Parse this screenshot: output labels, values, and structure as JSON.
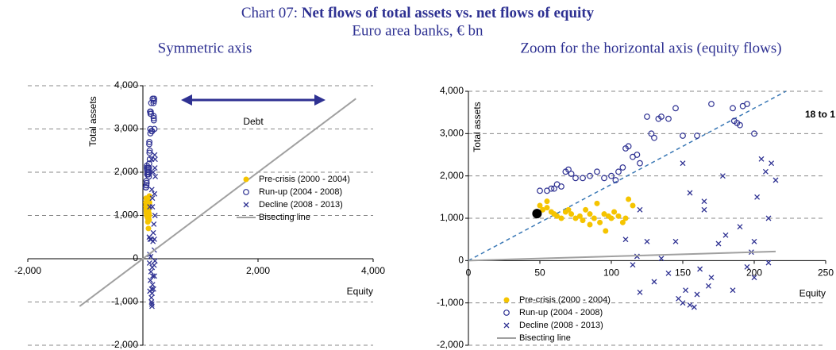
{
  "header": {
    "title_prefix": "Chart 07:",
    "title": "Net flows of total assets vs. net flows of equity",
    "subtitle": "Euro area banks,  € bn"
  },
  "chart_data": [
    {
      "type": "scatter",
      "title": "Symmetric axis",
      "xlabel": "Equity",
      "ylabel": "Total assets",
      "xlim": [
        -2000,
        4000
      ],
      "ylim": [
        -2000,
        4000
      ],
      "xticks": [
        {
          "value": -2000,
          "label": "-2,000"
        },
        {
          "value": 2000,
          "label": "2,000"
        },
        {
          "value": 4000,
          "label": "4,000"
        }
      ],
      "yticks": [
        {
          "value": -2000,
          "label": "-2,000"
        },
        {
          "value": -1000,
          "label": "-1,000"
        },
        0,
        {
          "value": 1000,
          "label": "1,000"
        },
        {
          "value": 2000,
          "label": "2,000"
        },
        {
          "value": 3000,
          "label": "3,000"
        },
        {
          "value": 4000,
          "label": "4,000"
        }
      ],
      "grid": true,
      "legend": "lower right",
      "annotation": "Debt",
      "series": [
        {
          "name": "Pre-crisis (2000 - 2004)",
          "color": "#f5c400",
          "marker": "dot",
          "x": [
            50,
            52,
            55,
            58,
            60,
            62,
            65,
            68,
            70,
            72,
            75,
            78,
            80,
            82,
            85,
            88,
            90,
            92,
            95,
            98,
            100,
            102,
            105,
            108,
            110,
            112,
            115,
            96,
            85,
            55
          ],
          "y": [
            1300,
            1200,
            1250,
            1150,
            1100,
            1050,
            1000,
            1150,
            1200,
            1100,
            1000,
            1050,
            950,
            1200,
            1100,
            1000,
            1350,
            900,
            1100,
            1050,
            1000,
            1150,
            1050,
            900,
            1000,
            1450,
            1300,
            700,
            850,
            1400
          ]
        },
        {
          "name": "Run-up (2004 - 2008)",
          "color": "#2e3192",
          "marker": "circle",
          "x": [
            50,
            55,
            60,
            62,
            65,
            68,
            70,
            72,
            80,
            85,
            90,
            95,
            100,
            105,
            108,
            110,
            112,
            115,
            120,
            125,
            128,
            130,
            133,
            135,
            140,
            145,
            150,
            160,
            170,
            185,
            190,
            195,
            200,
            188,
            192,
            186,
            118,
            103,
            75,
            58
          ],
          "y": [
            1650,
            1650,
            1700,
            1800,
            1750,
            2100,
            2150,
            2050,
            1950,
            2000,
            2100,
            1950,
            2000,
            2100,
            2200,
            2650,
            2700,
            2450,
            2300,
            3400,
            3000,
            2900,
            3350,
            3400,
            3350,
            3600,
            2950,
            2950,
            3700,
            3600,
            3200,
            3700,
            3000,
            3250,
            3650,
            3300,
            2500,
            1900,
            1950,
            1700
          ]
        },
        {
          "name": "Decline (2008 - 2013)",
          "color": "#2e3192",
          "marker": "x",
          "x": [
            110,
            115,
            118,
            120,
            125,
            130,
            135,
            140,
            145,
            147,
            150,
            152,
            155,
            155,
            158,
            160,
            162,
            165,
            168,
            170,
            175,
            180,
            185,
            190,
            195,
            198,
            200,
            202,
            205,
            210,
            212,
            215,
            120,
            150,
            165,
            178,
            208,
            210,
            200
          ],
          "y": [
            500,
            -100,
            100,
            -750,
            450,
            -500,
            50,
            -300,
            450,
            -900,
            -1000,
            -700,
            -1050,
            1600,
            -1100,
            -800,
            -200,
            1200,
            -600,
            -400,
            400,
            600,
            -700,
            800,
            -150,
            200,
            450,
            1500,
            2400,
            1000,
            2300,
            1900,
            1200,
            2300,
            1400,
            2000,
            2100,
            -50,
            -400
          ]
        },
        {
          "name": "Bisecting line",
          "color": "#a0a0a0",
          "marker": "line",
          "x": [
            -1100,
            3700
          ],
          "y": [
            -1100,
            3700
          ]
        }
      ]
    },
    {
      "type": "scatter",
      "title": "Zoom for the horizontal axis (equity flows)",
      "xlabel": "Equity",
      "ylabel": "Total assets",
      "xlim": [
        0,
        250
      ],
      "ylim": [
        -2000,
        4000
      ],
      "xticks": [
        0,
        50,
        100,
        150,
        200,
        250
      ],
      "yticks": [
        {
          "value": -2000,
          "label": "-2,000"
        },
        {
          "value": -1000,
          "label": "-1,000"
        },
        0,
        {
          "value": 1000,
          "label": "1,000"
        },
        {
          "value": 2000,
          "label": "2,000"
        },
        {
          "value": 3000,
          "label": "3,000"
        },
        {
          "value": 4000,
          "label": "4,000"
        }
      ],
      "grid": true,
      "legend": "lower left",
      "reference_line": {
        "label": "18 to 1",
        "slope": 18,
        "color": "#3a78b5"
      },
      "highlight": {
        "x": 48,
        "y": 1110,
        "color": "#000000"
      },
      "series": [
        {
          "name": "Pre-crisis (2000 - 2004)",
          "color": "#f5c400",
          "marker": "dot",
          "x": [
            50,
            52,
            55,
            58,
            60,
            62,
            65,
            68,
            70,
            72,
            75,
            78,
            80,
            82,
            85,
            88,
            90,
            92,
            95,
            98,
            100,
            102,
            105,
            108,
            110,
            112,
            115,
            96,
            85,
            55
          ],
          "y": [
            1300,
            1200,
            1250,
            1150,
            1100,
            1050,
            1000,
            1150,
            1200,
            1100,
            1000,
            1050,
            950,
            1200,
            1100,
            1000,
            1350,
            900,
            1100,
            1050,
            1000,
            1150,
            1050,
            900,
            1000,
            1450,
            1300,
            700,
            850,
            1400
          ]
        },
        {
          "name": "Run-up (2004 - 2008)",
          "color": "#2e3192",
          "marker": "circle",
          "x": [
            50,
            55,
            60,
            62,
            65,
            68,
            70,
            72,
            80,
            85,
            90,
            95,
            100,
            105,
            108,
            110,
            112,
            115,
            120,
            125,
            128,
            130,
            133,
            135,
            140,
            145,
            150,
            160,
            170,
            185,
            190,
            195,
            200,
            188,
            192,
            186,
            118,
            103,
            75,
            58
          ],
          "y": [
            1650,
            1650,
            1700,
            1800,
            1750,
            2100,
            2150,
            2050,
            1950,
            2000,
            2100,
            1950,
            2000,
            2100,
            2200,
            2650,
            2700,
            2450,
            2300,
            3400,
            3000,
            2900,
            3350,
            3400,
            3350,
            3600,
            2950,
            2950,
            3700,
            3600,
            3200,
            3700,
            3000,
            3250,
            3650,
            3300,
            2500,
            1900,
            1950,
            1700
          ]
        },
        {
          "name": "Decline (2008 - 2013)",
          "color": "#2e3192",
          "marker": "x",
          "x": [
            110,
            115,
            118,
            120,
            125,
            130,
            135,
            140,
            145,
            147,
            150,
            152,
            155,
            155,
            158,
            160,
            162,
            165,
            168,
            170,
            175,
            180,
            185,
            190,
            195,
            198,
            200,
            202,
            205,
            210,
            212,
            215,
            120,
            150,
            165,
            178,
            208,
            210,
            200
          ],
          "y": [
            500,
            -100,
            100,
            -750,
            450,
            -500,
            50,
            -300,
            450,
            -900,
            -1000,
            -700,
            -1050,
            1600,
            -1100,
            -800,
            -200,
            1200,
            -600,
            -400,
            400,
            600,
            -700,
            800,
            -150,
            200,
            450,
            1500,
            2400,
            1000,
            2300,
            1900,
            1200,
            2300,
            1400,
            2000,
            2100,
            -50,
            -400
          ]
        },
        {
          "name": "Bisecting line",
          "color": "#a0a0a0",
          "marker": "line",
          "x": [
            0,
            215
          ],
          "y": [
            0,
            215
          ]
        }
      ]
    }
  ]
}
